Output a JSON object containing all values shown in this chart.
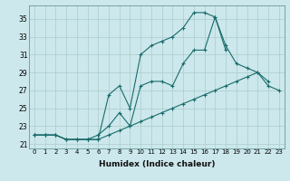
{
  "xlabel": "Humidex (Indice chaleur)",
  "ylabel": "",
  "bg_color": "#cce8ec",
  "grid_color": "#aacccc",
  "line_color": "#1a6b6b",
  "xlim": [
    -0.5,
    23.5
  ],
  "ylim": [
    20.5,
    36.5
  ],
  "xticks": [
    0,
    1,
    2,
    3,
    4,
    5,
    6,
    7,
    8,
    9,
    10,
    11,
    12,
    13,
    14,
    15,
    16,
    17,
    18,
    19,
    20,
    21,
    22,
    23
  ],
  "yticks": [
    21,
    23,
    25,
    27,
    29,
    31,
    33,
    35
  ],
  "series": [
    [
      22.0,
      22.0,
      22.0,
      21.5,
      21.5,
      21.5,
      21.5,
      26.5,
      27.5,
      25.0,
      31.0,
      32.0,
      32.5,
      33.0,
      34.0,
      35.7,
      35.7,
      35.2,
      31.5,
      null,
      null,
      null,
      null,
      null
    ],
    [
      22.0,
      22.0,
      22.0,
      21.5,
      21.5,
      21.5,
      22.0,
      23.0,
      24.5,
      23.0,
      27.5,
      28.0,
      28.0,
      27.5,
      30.0,
      31.5,
      31.5,
      35.2,
      32.0,
      30.0,
      29.5,
      29.0,
      28.0,
      null
    ],
    [
      22.0,
      22.0,
      22.0,
      21.5,
      21.5,
      21.5,
      21.5,
      22.0,
      22.5,
      23.0,
      23.5,
      24.0,
      24.5,
      25.0,
      25.5,
      26.0,
      26.5,
      27.0,
      27.5,
      28.0,
      28.5,
      29.0,
      27.5,
      27.0
    ]
  ]
}
